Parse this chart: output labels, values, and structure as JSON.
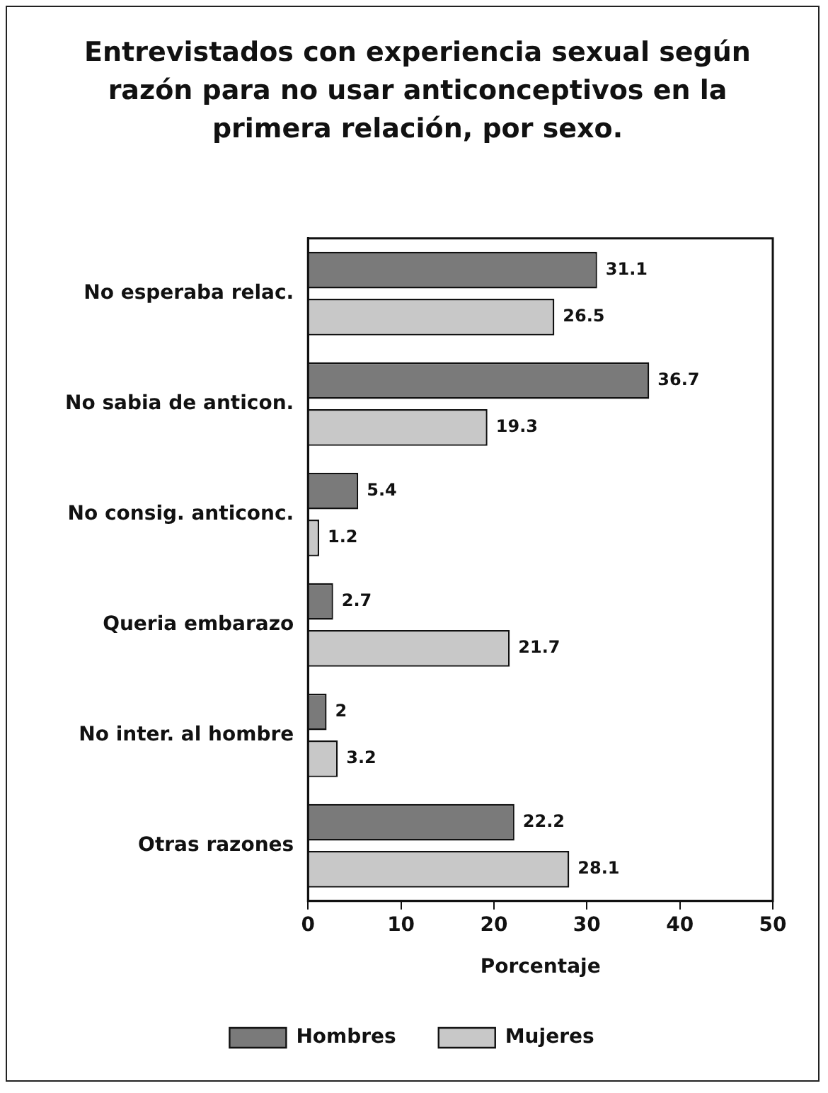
{
  "chart_data": {
    "type": "bar",
    "orientation": "horizontal",
    "title": "Entrevistados con experiencia sexual según razón para no usar anticonceptivos en la primera relación, por sexo.",
    "categories": [
      "No esperaba relac.",
      "No sabia de anticon.",
      "No consig. anticonc.",
      "Queria embarazo",
      "No inter. al hombre",
      "Otras razones"
    ],
    "series": [
      {
        "name": "Hombres",
        "color": "#7a7a7a",
        "values": [
          31.1,
          36.7,
          5.4,
          2.7,
          2,
          22.2
        ]
      },
      {
        "name": "Mujeres",
        "color": "#c8c8c8",
        "values": [
          26.5,
          19.3,
          1.2,
          21.7,
          3.2,
          28.1
        ]
      }
    ],
    "xlim": [
      0,
      50
    ],
    "xticks": [
      0,
      10,
      20,
      30,
      40,
      50
    ],
    "xlabel": "Porcentaje",
    "data_labels": true,
    "grid": false,
    "legend": "bottom"
  }
}
